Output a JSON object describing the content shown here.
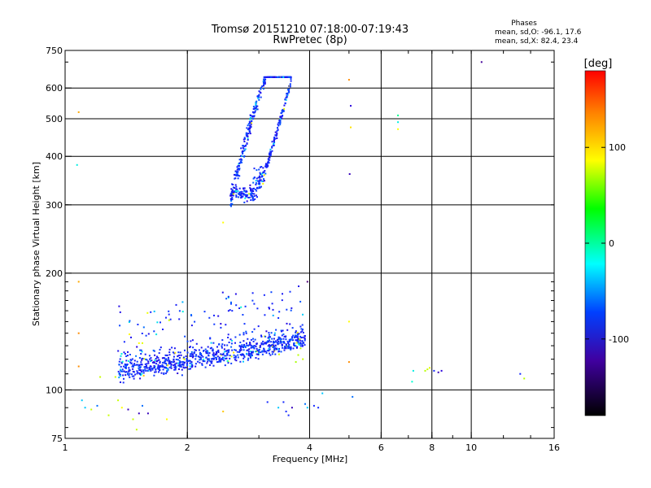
{
  "chart_data": {
    "type": "scatter",
    "title": "Tromsø 20151210 07:18:00-07:19:43",
    "subtitle": "RwPretec (8p)",
    "xlabel": "Frequency [MHz]",
    "ylabel": "Stationary phase Virtual Height [km]",
    "x_scale": "log",
    "y_scale": "log",
    "xlim": [
      1,
      16
    ],
    "ylim": [
      75,
      750
    ],
    "x_ticks": [
      1,
      2,
      4,
      6,
      8,
      10,
      16
    ],
    "x_tick_labels": [
      "1",
      "2",
      "4",
      "6",
      "8",
      "10",
      "16"
    ],
    "x_grid": [
      2,
      4,
      6,
      8,
      10
    ],
    "y_ticks": [
      75,
      100,
      200,
      300,
      400,
      500,
      600,
      750
    ],
    "y_tick_labels": [
      "75",
      "100",
      "200",
      "300",
      "400",
      "500",
      "600",
      "750"
    ],
    "y_grid": [
      100,
      200,
      300,
      400,
      500,
      600
    ],
    "grid": true,
    "phase_info": {
      "heading": "Phases",
      "line1": "mean, sd,O: -96.1, 17.6",
      "line2": "mean, sd,X:  82.4, 23.4"
    },
    "colorbar": {
      "label": "[deg]",
      "range": [
        -180,
        180
      ],
      "ticks": [
        100,
        0,
        -100
      ],
      "tick_labels": [
        "100",
        "0",
        "-100"
      ]
    },
    "clusters": [
      {
        "name": "E-region traces",
        "freq_range": [
          1.35,
          3.9
        ],
        "height_range": [
          104,
          185
        ],
        "phase": -100
      },
      {
        "name": "F-region traces",
        "freq_range": [
          2.45,
          3.6
        ],
        "height_range": [
          295,
          640
        ],
        "phase": -100
      }
    ],
    "points": [
      {
        "x": 1.08,
        "y": 520,
        "phase": 130
      },
      {
        "x": 1.07,
        "y": 380,
        "phase": -40
      },
      {
        "x": 1.08,
        "y": 190,
        "phase": 130
      },
      {
        "x": 1.08,
        "y": 140,
        "phase": 140
      },
      {
        "x": 1.08,
        "y": 115,
        "phase": 140
      },
      {
        "x": 1.22,
        "y": 108,
        "phase": 80
      },
      {
        "x": 1.33,
        "y": 108,
        "phase": 80
      },
      {
        "x": 1.1,
        "y": 94,
        "phase": -60
      },
      {
        "x": 1.12,
        "y": 90,
        "phase": -60
      },
      {
        "x": 1.16,
        "y": 89,
        "phase": 80
      },
      {
        "x": 1.2,
        "y": 91,
        "phase": -80
      },
      {
        "x": 1.28,
        "y": 86,
        "phase": 80
      },
      {
        "x": 1.35,
        "y": 94,
        "phase": 80
      },
      {
        "x": 1.38,
        "y": 90,
        "phase": 100
      },
      {
        "x": 1.43,
        "y": 89,
        "phase": -130
      },
      {
        "x": 1.47,
        "y": 84,
        "phase": 80
      },
      {
        "x": 1.5,
        "y": 79,
        "phase": 80
      },
      {
        "x": 1.52,
        "y": 87,
        "phase": -130
      },
      {
        "x": 1.55,
        "y": 91,
        "phase": -80
      },
      {
        "x": 1.6,
        "y": 87,
        "phase": -130
      },
      {
        "x": 1.78,
        "y": 84,
        "phase": 100
      },
      {
        "x": 1.4,
        "y": 133,
        "phase": -100
      },
      {
        "x": 1.52,
        "y": 132,
        "phase": 100
      },
      {
        "x": 1.55,
        "y": 132,
        "phase": 90
      },
      {
        "x": 2.45,
        "y": 270,
        "phase": 100
      },
      {
        "x": 2.45,
        "y": 88,
        "phase": 120
      },
      {
        "x": 3.15,
        "y": 93,
        "phase": -100
      },
      {
        "x": 3.35,
        "y": 90,
        "phase": -60
      },
      {
        "x": 3.5,
        "y": 88,
        "phase": -100
      },
      {
        "x": 3.45,
        "y": 93,
        "phase": -100
      },
      {
        "x": 3.62,
        "y": 90,
        "phase": -130
      },
      {
        "x": 3.55,
        "y": 86,
        "phase": -100
      },
      {
        "x": 3.7,
        "y": 118,
        "phase": 60
      },
      {
        "x": 3.75,
        "y": 123,
        "phase": 70
      },
      {
        "x": 3.8,
        "y": 128,
        "phase": 75
      },
      {
        "x": 3.78,
        "y": 135,
        "phase": 60
      },
      {
        "x": 3.85,
        "y": 120,
        "phase": 80
      },
      {
        "x": 3.95,
        "y": 190,
        "phase": -150
      },
      {
        "x": 3.9,
        "y": 92,
        "phase": -80
      },
      {
        "x": 3.95,
        "y": 90,
        "phase": -60
      },
      {
        "x": 4.1,
        "y": 91,
        "phase": -100
      },
      {
        "x": 4.3,
        "y": 98,
        "phase": -60
      },
      {
        "x": 4.2,
        "y": 90,
        "phase": -100
      },
      {
        "x": 5.0,
        "y": 630,
        "phase": 140
      },
      {
        "x": 5.05,
        "y": 540,
        "phase": -120
      },
      {
        "x": 5.05,
        "y": 475,
        "phase": 110
      },
      {
        "x": 5.02,
        "y": 360,
        "phase": -130
      },
      {
        "x": 5.0,
        "y": 150,
        "phase": 100
      },
      {
        "x": 5.0,
        "y": 118,
        "phase": 140
      },
      {
        "x": 5.1,
        "y": 96,
        "phase": -80
      },
      {
        "x": 6.6,
        "y": 510,
        "phase": -20
      },
      {
        "x": 6.6,
        "y": 490,
        "phase": -40
      },
      {
        "x": 6.6,
        "y": 470,
        "phase": 100
      },
      {
        "x": 7.2,
        "y": 112,
        "phase": -40
      },
      {
        "x": 7.15,
        "y": 105,
        "phase": -30
      },
      {
        "x": 7.7,
        "y": 112,
        "phase": 70
      },
      {
        "x": 7.8,
        "y": 113,
        "phase": 80
      },
      {
        "x": 7.9,
        "y": 114,
        "phase": 90
      },
      {
        "x": 8.1,
        "y": 112,
        "phase": -100
      },
      {
        "x": 8.3,
        "y": 111,
        "phase": -130
      },
      {
        "x": 8.45,
        "y": 112,
        "phase": -120
      },
      {
        "x": 10.6,
        "y": 700,
        "phase": -140
      },
      {
        "x": 13.2,
        "y": 110,
        "phase": -100
      },
      {
        "x": 13.5,
        "y": 107,
        "phase": 70
      }
    ]
  }
}
